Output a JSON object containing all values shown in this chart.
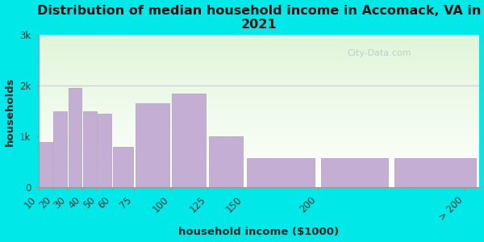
{
  "title": "Distribution of median household income in Accomack, VA in\n2021",
  "xlabel": "household income ($1000)",
  "ylabel": "households",
  "bar_lefts": [
    10,
    20,
    30,
    40,
    50,
    60,
    75,
    100,
    125,
    150,
    200,
    250
  ],
  "bar_widths": [
    10,
    10,
    10,
    10,
    10,
    15,
    25,
    25,
    25,
    50,
    50,
    60
  ],
  "values": [
    900,
    1500,
    1950,
    1500,
    1450,
    800,
    1650,
    1850,
    1000,
    580,
    580,
    570
  ],
  "tick_positions": [
    10,
    20,
    30,
    40,
    50,
    60,
    75,
    100,
    125,
    150,
    200,
    300
  ],
  "tick_labels": [
    "10",
    "20",
    "30",
    "40",
    "50",
    "60",
    "75",
    "100",
    "125",
    "150",
    "200",
    "> 200"
  ],
  "bar_color": "#c4aed4",
  "bar_edge_color": "#b09dc0",
  "background_outer": "#00e8e8",
  "yticks": [
    0,
    1000,
    2000,
    3000
  ],
  "ytick_labels": [
    "0",
    "1k",
    "2k",
    "3k"
  ],
  "ylim": [
    0,
    3000
  ],
  "xlim": [
    10,
    310
  ],
  "title_fontsize": 11.5,
  "axis_label_fontsize": 9.5,
  "tick_fontsize": 8.5,
  "title_color": "#111111",
  "axis_label_color": "#222222",
  "tick_color": "#333333",
  "watermark_text": "City-Data.com",
  "watermark_color": "#b0c8c8",
  "grid_color": "#cccccc",
  "spine_color": "#999999"
}
